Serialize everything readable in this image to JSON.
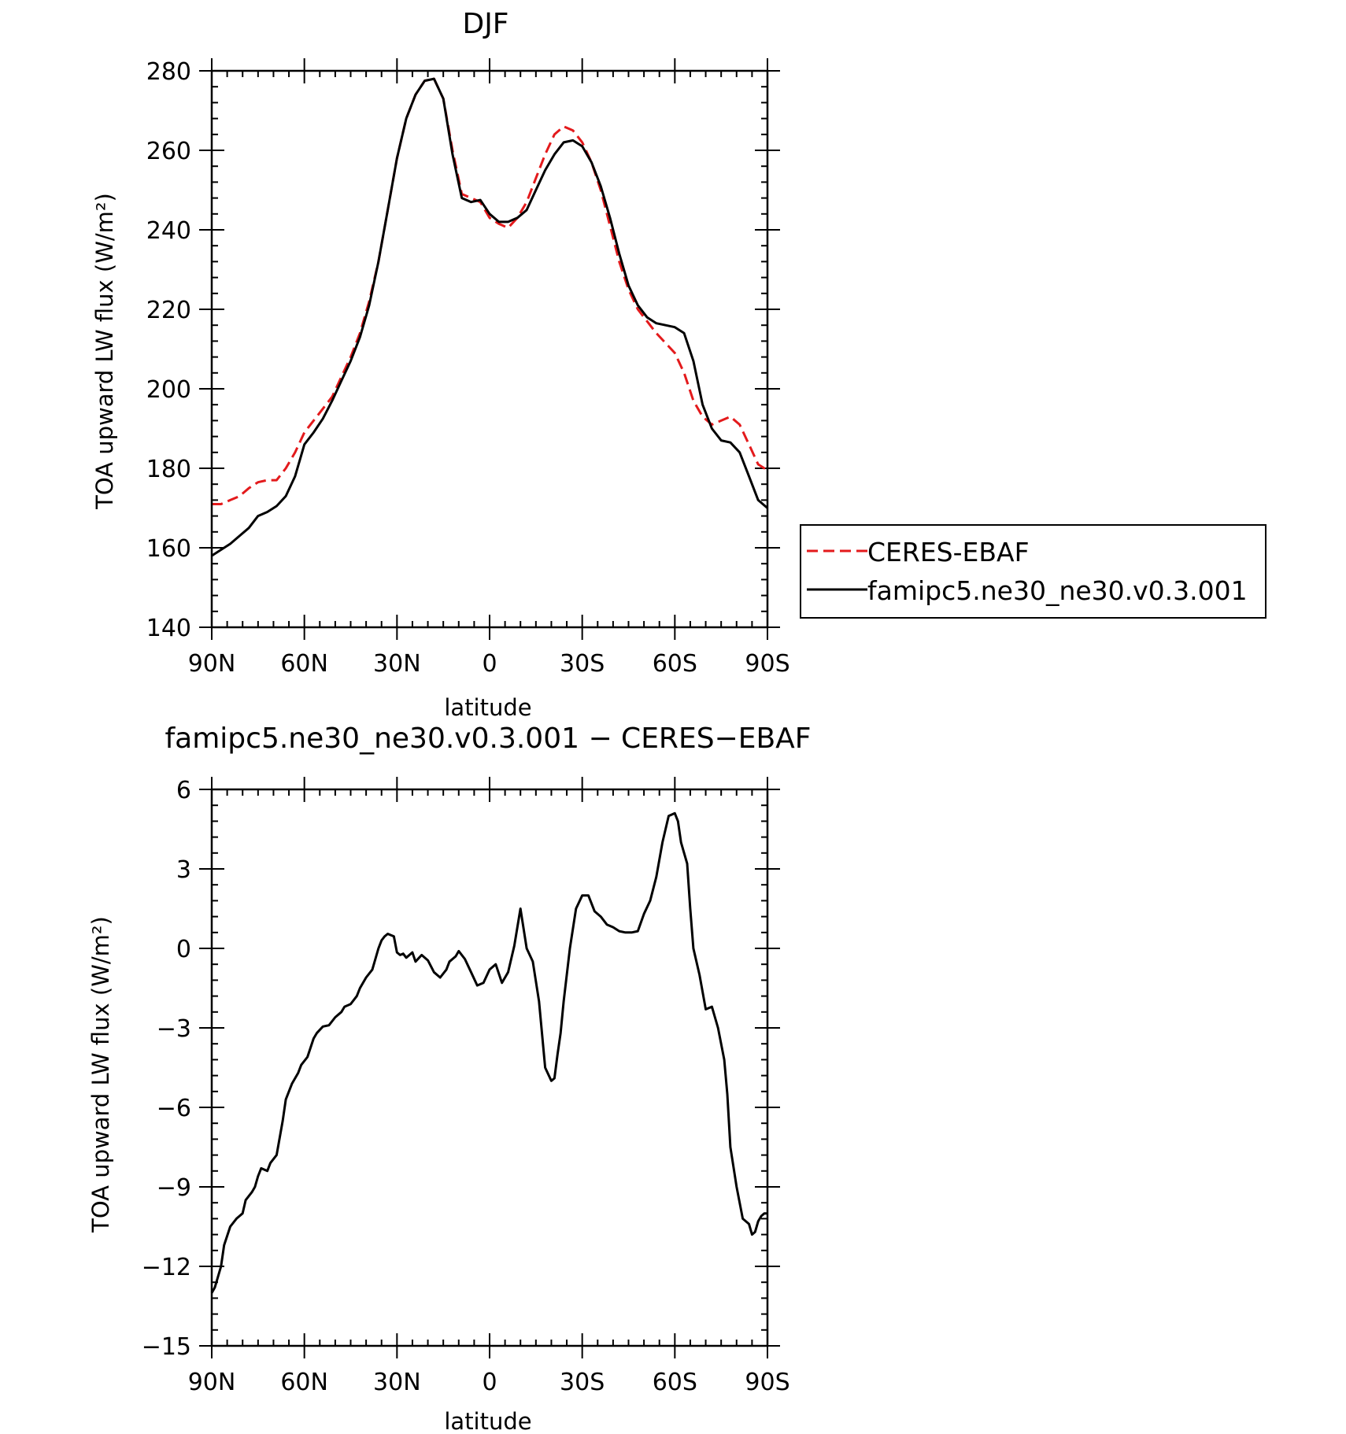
{
  "chart_data": [
    {
      "type": "line",
      "title": "DJF",
      "xlabel": "latitude",
      "ylabel": "TOA upward LW flux (W/m²)",
      "xlim": [
        90,
        -90
      ],
      "ylim": [
        140,
        280
      ],
      "xticks": [
        90,
        60,
        30,
        0,
        -30,
        -60,
        -90
      ],
      "xtick_labels": [
        "90N",
        "60N",
        "30N",
        "0",
        "30S",
        "60S",
        "90S"
      ],
      "yticks": [
        140,
        160,
        180,
        200,
        220,
        240,
        260,
        280
      ],
      "ytick_labels": [
        "140",
        "160",
        "180",
        "200",
        "220",
        "240",
        "260",
        "280"
      ],
      "legend_position": "right",
      "series": [
        {
          "name": "CERES-EBAF",
          "color": "#e31a1c",
          "dash": "dashed",
          "x": [
            90,
            87,
            84,
            81,
            78,
            75,
            72,
            69,
            66,
            63,
            60,
            57,
            54,
            51,
            48,
            45,
            42,
            39,
            36,
            33,
            30,
            27,
            24,
            21,
            18,
            15,
            12,
            9,
            6,
            3,
            0,
            -3,
            -6,
            -9,
            -12,
            -15,
            -18,
            -21,
            -24,
            -27,
            -30,
            -33,
            -36,
            -39,
            -42,
            -45,
            -48,
            -51,
            -54,
            -57,
            -60,
            -63,
            -66,
            -69,
            -72,
            -75,
            -78,
            -81,
            -84,
            -87,
            -90
          ],
          "y": [
            171,
            171,
            172,
            173,
            175,
            176.5,
            177,
            177,
            180,
            184,
            189,
            192,
            195,
            198,
            203,
            208,
            214,
            222,
            232,
            245,
            258,
            268,
            274,
            277.5,
            278,
            273,
            260,
            249,
            248,
            247,
            243,
            241.5,
            240.5,
            243,
            247,
            253,
            259,
            264,
            266,
            265,
            262,
            257,
            250,
            241,
            232,
            225,
            220,
            217,
            214,
            211.5,
            209,
            204,
            197,
            193,
            191,
            192,
            193,
            191,
            186,
            181,
            179.5
          ]
        },
        {
          "name": "famipc5.ne30_ne30.v0.3.001",
          "color": "#000000",
          "dash": "solid",
          "x": [
            90,
            87,
            84,
            81,
            78,
            75,
            72,
            69,
            66,
            63,
            60,
            57,
            54,
            51,
            48,
            45,
            42,
            39,
            36,
            33,
            30,
            27,
            24,
            21,
            18,
            15,
            12,
            9,
            6,
            3,
            0,
            -3,
            -6,
            -9,
            -12,
            -15,
            -18,
            -21,
            -24,
            -27,
            -30,
            -33,
            -36,
            -39,
            -42,
            -45,
            -48,
            -51,
            -54,
            -57,
            -60,
            -63,
            -66,
            -69,
            -72,
            -75,
            -78,
            -81,
            -84,
            -87,
            -90
          ],
          "y": [
            158,
            159.5,
            161,
            163,
            165,
            168,
            169,
            170.5,
            173,
            178,
            186,
            189,
            192.5,
            197,
            202,
            207,
            213,
            221,
            232,
            245,
            258,
            268,
            274,
            277.5,
            278,
            273,
            259,
            248,
            247,
            247.5,
            244,
            242,
            242,
            243,
            245,
            250,
            255,
            259,
            262,
            262.5,
            261,
            257,
            251,
            243,
            234,
            226,
            221,
            218,
            216.5,
            216,
            215.5,
            214,
            207,
            196,
            190,
            187,
            186.5,
            184,
            178,
            172,
            170
          ]
        }
      ]
    },
    {
      "type": "line",
      "title": "famipc5.ne30_ne30.v0.3.001 − CERES−EBAF",
      "xlabel": "latitude",
      "ylabel": "TOA upward LW flux (W/m²)",
      "xlim": [
        90,
        -90
      ],
      "ylim": [
        -15,
        6
      ],
      "xticks": [
        90,
        60,
        30,
        0,
        -30,
        -60,
        -90
      ],
      "xtick_labels": [
        "90N",
        "60N",
        "30N",
        "0",
        "30S",
        "60S",
        "90S"
      ],
      "yticks": [
        -15,
        -12,
        -9,
        -6,
        -3,
        0,
        3,
        6
      ],
      "ytick_labels": [
        "−15",
        "−12",
        "−9",
        "−6",
        "−3",
        "0",
        "3",
        "6"
      ],
      "series": [
        {
          "color": "#000000",
          "dash": "solid",
          "x": [
            90,
            89,
            87,
            86,
            84,
            82,
            80,
            79,
            77,
            76,
            75,
            74,
            72,
            71,
            69,
            67,
            66,
            64,
            62,
            61,
            59,
            57,
            56,
            54,
            52,
            50,
            48,
            47,
            45,
            43,
            42,
            40,
            38,
            37,
            36,
            35,
            34,
            33,
            31,
            30,
            29,
            28,
            27,
            25,
            24,
            22,
            20,
            18,
            16,
            14,
            13,
            11,
            10,
            8,
            6,
            4,
            2,
            0,
            -2,
            -4,
            -6,
            -8,
            -10,
            -12,
            -14,
            -16,
            -18,
            -20,
            -21,
            -22,
            -23,
            -24,
            -26,
            -28,
            -30,
            -32,
            -34,
            -36,
            -38,
            -40,
            -42,
            -44,
            -46,
            -48,
            -50,
            -52,
            -54,
            -56,
            -58,
            -60,
            -61,
            -62,
            -64,
            -65,
            -66,
            -68,
            -70,
            -72,
            -74,
            -76,
            -77,
            -78,
            -80,
            -82,
            -84,
            -85,
            -86,
            -87,
            -88,
            -89,
            -90
          ],
          "y": [
            -13,
            -12.8,
            -12,
            -11.2,
            -10.5,
            -10.2,
            -10,
            -9.5,
            -9.2,
            -9,
            -8.6,
            -8.3,
            -8.4,
            -8.1,
            -7.8,
            -6.5,
            -5.7,
            -5.1,
            -4.7,
            -4.4,
            -4.1,
            -3.4,
            -3.2,
            -2.95,
            -2.9,
            -2.6,
            -2.4,
            -2.2,
            -2.1,
            -1.8,
            -1.5,
            -1.1,
            -0.8,
            -0.4,
            0,
            0.3,
            0.45,
            0.55,
            0.45,
            -0.15,
            -0.25,
            -0.2,
            -0.35,
            -0.15,
            -0.5,
            -0.25,
            -0.45,
            -0.9,
            -1.1,
            -0.8,
            -0.5,
            -0.3,
            -0.1,
            -0.4,
            -0.9,
            -1.4,
            -1.3,
            -0.8,
            -0.6,
            -1.3,
            -0.9,
            0.1,
            1.5,
            0,
            -0.5,
            -2,
            -4.5,
            -5,
            -4.9,
            -4,
            -3.2,
            -2,
            0,
            1.5,
            2,
            2,
            1.4,
            1.2,
            0.9,
            0.8,
            0.65,
            0.6,
            0.6,
            0.65,
            1.3,
            1.8,
            2.7,
            4,
            5,
            5.1,
            4.8,
            4,
            3.2,
            1.5,
            0,
            -1,
            -2.3,
            -2.2,
            -3,
            -4.2,
            -5.5,
            -7.5,
            -9,
            -10.2,
            -10.4,
            -10.8,
            -10.7,
            -10.3,
            -10.1,
            -10,
            -10
          ]
        }
      ]
    }
  ]
}
